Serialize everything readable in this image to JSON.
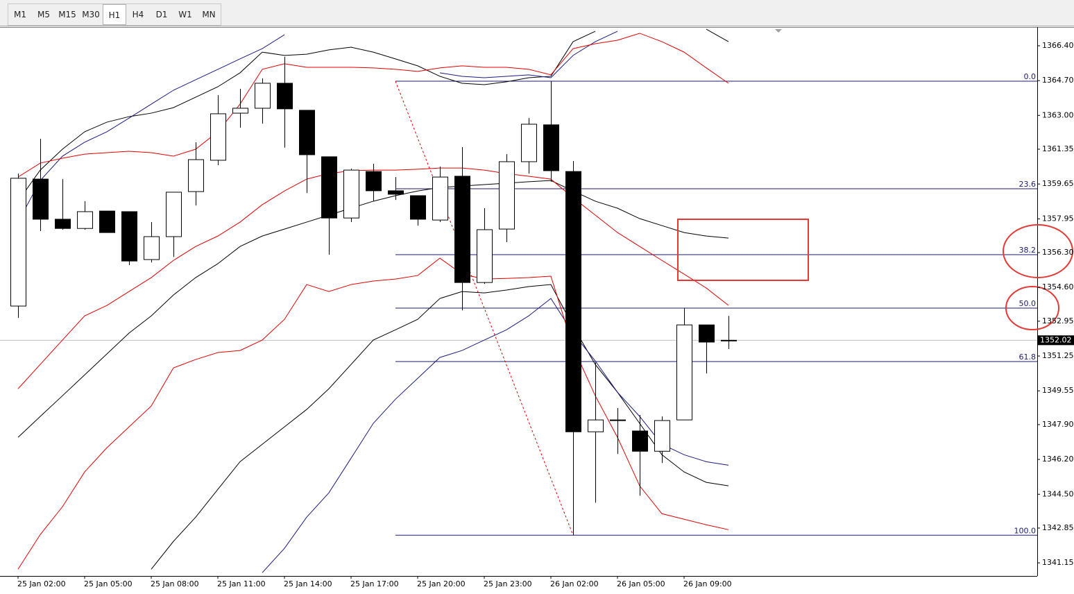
{
  "toolbar": {
    "timeframes": [
      "M1",
      "M5",
      "M15",
      "M30",
      "H1",
      "H4",
      "D1",
      "W1",
      "MN"
    ],
    "active": "H1"
  },
  "chart_data": {
    "type": "candlestick",
    "categories": [
      "25 Jan 02:00",
      null,
      null,
      "25 Jan 05:00",
      null,
      null,
      "25 Jan 08:00",
      null,
      null,
      "25 Jan 11:00",
      null,
      null,
      "25 Jan 14:00",
      null,
      null,
      "25 Jan 17:00",
      null,
      null,
      "25 Jan 20:00",
      null,
      null,
      "25 Jan 23:00",
      null,
      null,
      "26 Jan 02:00",
      null,
      null,
      "26 Jan 05:00",
      null,
      null,
      "26 Jan 09:00",
      null,
      null
    ],
    "open": [
      1353.69,
      1359.89,
      1357.93,
      1357.48,
      1358.33,
      1358.3,
      1355.96,
      1357.08,
      1359.28,
      1360.81,
      1363.11,
      1363.35,
      1364.57,
      1363.25,
      1360.98,
      1357.99,
      1360.26,
      1359.32,
      1359.08,
      1357.89,
      1360.03,
      1354.84,
      1357.45,
      1360.74,
      1362.54,
      1360.26,
      1347.55,
      1348.13,
      1347.59,
      1346.6,
      1348.13,
      1352.77,
      1352.0
    ],
    "high": [
      1360.16,
      1361.86,
      1359.89,
      1358.81,
      1358.33,
      1358.3,
      1357.79,
      1359.25,
      1361.69,
      1363.99,
      1364.3,
      1364.81,
      1365.86,
      1363.25,
      1360.98,
      1360.4,
      1360.64,
      1359.99,
      1359.08,
      1360.5,
      1361.45,
      1358.47,
      1361.11,
      1362.87,
      1364.67,
      1360.77,
      1350.94,
      1348.71,
      1348.37,
      1348.3,
      1353.58,
      1352.77,
      1353.21
    ],
    "low": [
      1353.11,
      1357.35,
      1357.42,
      1357.42,
      1357.28,
      1355.69,
      1355.82,
      1356.09,
      1358.6,
      1360.57,
      1362.4,
      1362.6,
      1361.42,
      1359.21,
      1356.2,
      1357.79,
      1358.81,
      1358.87,
      1357.62,
      1357.79,
      1353.48,
      1354.77,
      1356.81,
      1360.16,
      1359.76,
      1342.5,
      1344.09,
      1346.47,
      1344.43,
      1346.03,
      1348.13,
      1350.4,
      1351.59
    ],
    "close": [
      1359.93,
      1357.93,
      1357.48,
      1358.3,
      1357.28,
      1355.89,
      1357.08,
      1359.25,
      1360.84,
      1363.08,
      1363.35,
      1364.57,
      1363.32,
      1361.08,
      1357.99,
      1360.33,
      1359.32,
      1359.15,
      1357.93,
      1359.99,
      1354.84,
      1357.42,
      1360.74,
      1362.57,
      1360.3,
      1347.55,
      1348.13,
      1348.13,
      1346.6,
      1348.1,
      1352.77,
      1351.93,
      1352.02
    ],
    "up_color": "#ffffff",
    "down_color": "#000000",
    "indicators": [
      {
        "color": "#000000",
        "values": [
          1358.81,
          1360.33,
          1361.35,
          1362.2,
          1362.67,
          1362.94,
          1363.11,
          1363.38,
          1363.89,
          1364.4,
          1365.08,
          1366.09,
          1365.93,
          1365.99,
          1366.2,
          1366.33,
          1366.09,
          1365.76,
          1365.42,
          1364.91,
          1364.57,
          1364.5,
          1364.64,
          1364.84,
          1364.91,
          1366.6,
          1367.11,
          null,
          null,
          null,
          null,
          1367.21,
          1366.6
        ]
      },
      {
        "color": "#1a1a80",
        "values": [
          1357.79,
          1359.82,
          1361.01,
          1361.69,
          1362.2,
          1362.87,
          1363.55,
          1364.23,
          1364.74,
          1365.25,
          1365.76,
          1366.26,
          1366.94,
          null,
          null,
          null,
          null,
          null,
          null,
          1365.08,
          1364.91,
          1364.84,
          1364.91,
          1364.98,
          1364.84,
          1365.93,
          1366.6,
          1367.11,
          null,
          null,
          null,
          null,
          null
        ]
      },
      {
        "color": "#e00000",
        "values": [
          1359.99,
          1360.67,
          1360.91,
          1361.11,
          1361.18,
          1361.25,
          1361.18,
          1361.01,
          1361.35,
          1362.2,
          1363.55,
          1365.25,
          1365.52,
          1365.35,
          1365.35,
          1365.35,
          1365.32,
          1365.25,
          1365.15,
          1365.32,
          1365.42,
          1365.35,
          1365.35,
          1365.25,
          1364.98,
          1366.26,
          1366.5,
          1366.67,
          1367.01,
          1366.6,
          1366.09,
          1365.32,
          1364.57
        ]
      },
      {
        "color": "#000000",
        "values": [
          1347.28,
          1348.3,
          1349.31,
          1350.33,
          1351.35,
          1352.37,
          1353.21,
          1354.23,
          1355.08,
          1355.76,
          1356.6,
          1357.11,
          1357.45,
          1357.79,
          1358.13,
          1358.47,
          1358.81,
          1359.08,
          1359.31,
          1359.48,
          1359.55,
          1359.62,
          1359.69,
          1359.76,
          1359.82,
          1359.31,
          1358.81,
          1358.47,
          1357.96,
          1357.62,
          1357.28,
          1357.11,
          1357.01
        ]
      },
      {
        "color": "#e00000",
        "values": [
          1349.65,
          1350.84,
          1352.03,
          1353.21,
          1353.72,
          1354.4,
          1355.08,
          1355.92,
          1356.6,
          1357.11,
          1357.79,
          1358.64,
          1359.31,
          1359.89,
          1360.16,
          1360.3,
          1360.33,
          1360.33,
          1360.37,
          1360.43,
          1360.43,
          1360.33,
          1360.16,
          1360.03,
          1359.89,
          1358.98,
          1358.13,
          1357.28,
          1356.6,
          1355.92,
          1355.25,
          1354.57,
          1353.72
        ]
      },
      {
        "color": "#000000",
        "values": [
          null,
          null,
          null,
          null,
          null,
          null,
          1340.84,
          1342.2,
          1343.38,
          1344.74,
          1346.09,
          1346.94,
          1347.79,
          1348.64,
          1349.65,
          1350.84,
          1352.03,
          1352.53,
          1353.04,
          1354.06,
          1354.4,
          1354.33,
          1354.47,
          1354.64,
          1354.74,
          1352.7,
          1350.84,
          1349.48,
          1347.96,
          1346.43,
          1345.59,
          1345.08,
          1344.91
        ]
      },
      {
        "color": "#1a1a80",
        "values": [
          null,
          null,
          null,
          null,
          null,
          null,
          null,
          null,
          null,
          null,
          null,
          1340.67,
          1341.86,
          1343.38,
          1344.57,
          1346.26,
          1347.96,
          1349.14,
          1350.16,
          1351.18,
          1351.52,
          1352.03,
          1352.53,
          1353.21,
          1354.06,
          1352.37,
          1351.01,
          1349.48,
          1348.3,
          1346.94,
          1346.43,
          1346.09,
          1345.92
        ]
      },
      {
        "color": "#e00000",
        "values": [
          1340.84,
          1342.53,
          1343.89,
          1345.59,
          1346.77,
          1347.79,
          1348.81,
          1350.67,
          1351.08,
          1351.42,
          1351.52,
          1352.03,
          1353.04,
          1354.74,
          1354.4,
          1354.74,
          1354.91,
          1355.01,
          1355.18,
          1356.03,
          1355.25,
          1355.01,
          1355.04,
          1355.08,
          1355.15,
          1351.69,
          1349.31,
          1347.28,
          1344.91,
          1343.55,
          1343.28,
          1343.01,
          1342.77
        ]
      }
    ],
    "fibonacci": {
      "color": "#1a1a6e",
      "trend_color": "#e00000",
      "levels": [
        {
          "value": 1364.67,
          "label": "0.0"
        },
        {
          "value": 1359.42,
          "label": "23.6"
        },
        {
          "value": 1356.2,
          "label": "38.2"
        },
        {
          "value": 1353.59,
          "label": "50.0"
        },
        {
          "value": 1350.98,
          "label": "61.8"
        },
        {
          "value": 1342.5,
          "label": "100.0"
        }
      ]
    },
    "current_price": 1352.02,
    "ylim": [
      1340.51,
      1367.28
    ],
    "yticks": [
      {
        "value": 1366.4,
        "label": "1366.40"
      },
      {
        "value": 1364.7,
        "label": "1364.70"
      },
      {
        "value": 1363,
        "label": "1363.00"
      },
      1361.35,
      1359.65,
      1357.95,
      {
        "value": 1356.3,
        "label": "1356.30"
      },
      {
        "value": 1354.6,
        "label": "1354.60"
      },
      1352.95,
      1351.25,
      1349.55,
      {
        "value": 1347.9,
        "label": "1347.90"
      },
      {
        "value": 1346.2,
        "label": "1346.20"
      },
      {
        "value": 1344.5,
        "label": "1344.50"
      },
      1342.85,
      1341.15
    ],
    "grid": false
  }
}
